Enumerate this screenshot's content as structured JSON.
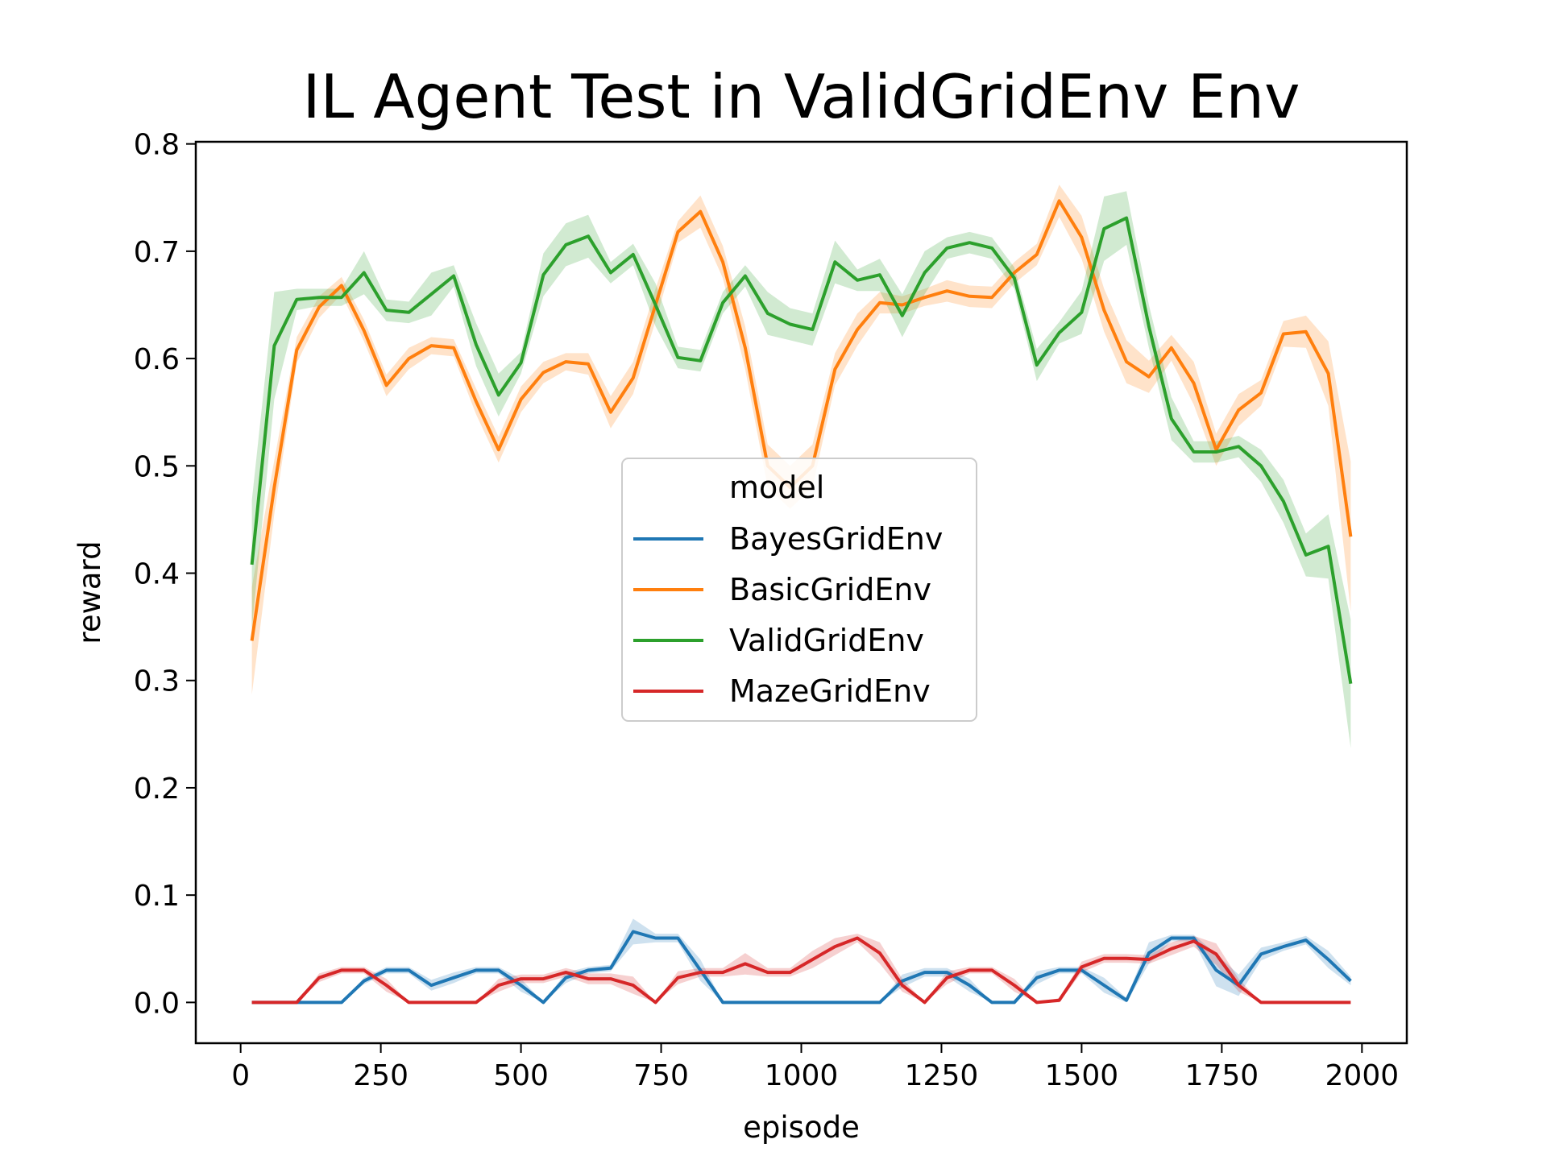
{
  "chart_data": {
    "type": "line",
    "title": "IL Agent Test in ValidGridEnv Env",
    "xlabel": "episode",
    "ylabel": "reward",
    "xlim": [
      -80,
      2080
    ],
    "ylim": [
      -0.038,
      0.802
    ],
    "xticks": [
      0,
      250,
      500,
      750,
      1000,
      1250,
      1500,
      1750,
      2000
    ],
    "yticks": [
      0.0,
      0.1,
      0.2,
      0.3,
      0.4,
      0.5,
      0.6,
      0.7,
      0.8
    ],
    "xtick_labels": [
      "0",
      "250",
      "500",
      "750",
      "1000",
      "1250",
      "1500",
      "1750",
      "2000"
    ],
    "ytick_labels": [
      "0.0",
      "0.1",
      "0.2",
      "0.3",
      "0.4",
      "0.5",
      "0.6",
      "0.7",
      "0.8"
    ],
    "legend": {
      "title": "model",
      "placement": "center",
      "entries": [
        "BayesGridEnv",
        "BasicGridEnv",
        "ValidGridEnv",
        "MazeGridEnv"
      ]
    },
    "grid": false,
    "confidence_bands": true,
    "x": [
      20,
      60,
      100,
      140,
      180,
      220,
      260,
      300,
      340,
      380,
      420,
      460,
      500,
      540,
      580,
      620,
      660,
      700,
      740,
      780,
      820,
      860,
      900,
      940,
      980,
      1020,
      1060,
      1100,
      1140,
      1180,
      1220,
      1260,
      1300,
      1340,
      1380,
      1420,
      1460,
      1500,
      1540,
      1580,
      1620,
      1660,
      1700,
      1740,
      1780,
      1820,
      1860,
      1900,
      1940,
      1980
    ],
    "series": [
      {
        "name": "BayesGridEnv",
        "color": "#1f77b4",
        "values": [
          0,
          0,
          0,
          0,
          0,
          0.02,
          0.03,
          0.03,
          0.016,
          0.023,
          0.03,
          0.03,
          0.016,
          0,
          0.023,
          0.03,
          0.032,
          0.066,
          0.06,
          0.06,
          0.03,
          0,
          0,
          0,
          0,
          0,
          0,
          0,
          0,
          0.02,
          0.028,
          0.028,
          0.016,
          0,
          0,
          0.023,
          0.03,
          0.03,
          0.016,
          0.002,
          0.046,
          0.06,
          0.06,
          0.03,
          0.016,
          0.045,
          0.052,
          0.058,
          0.04,
          0.02
        ],
        "band": [
          0,
          0,
          0,
          0,
          0,
          0.003,
          0.003,
          0.003,
          0.005,
          0.005,
          0.003,
          0.003,
          0.006,
          0,
          0.005,
          0.003,
          0.003,
          0.012,
          0.004,
          0.004,
          0.01,
          0,
          0,
          0,
          0,
          0,
          0,
          0,
          0,
          0.006,
          0.004,
          0.004,
          0.006,
          0,
          0,
          0.006,
          0.003,
          0.003,
          0.007,
          0.002,
          0.01,
          0.003,
          0.003,
          0.015,
          0.01,
          0.006,
          0.004,
          0.004,
          0.008,
          0.004
        ]
      },
      {
        "name": "BasicGridEnv",
        "color": "#ff7f0e",
        "values": [
          0.337,
          0.48,
          0.608,
          0.648,
          0.668,
          0.626,
          0.575,
          0.6,
          0.612,
          0.61,
          0.56,
          0.515,
          0.562,
          0.587,
          0.597,
          0.595,
          0.55,
          0.582,
          0.65,
          0.718,
          0.737,
          0.69,
          0.61,
          0.5,
          0.48,
          0.5,
          0.59,
          0.627,
          0.652,
          0.65,
          0.657,
          0.663,
          0.658,
          0.657,
          0.68,
          0.697,
          0.747,
          0.713,
          0.645,
          0.597,
          0.583,
          0.61,
          0.577,
          0.515,
          0.552,
          0.568,
          0.623,
          0.625,
          0.586,
          0.434
        ],
        "band": [
          0.05,
          0.025,
          0.012,
          0.01,
          0.008,
          0.01,
          0.01,
          0.01,
          0.008,
          0.008,
          0.012,
          0.012,
          0.012,
          0.01,
          0.008,
          0.01,
          0.015,
          0.015,
          0.015,
          0.01,
          0.015,
          0.015,
          0.02,
          0.02,
          0.02,
          0.02,
          0.015,
          0.015,
          0.01,
          0.008,
          0.008,
          0.01,
          0.01,
          0.01,
          0.01,
          0.01,
          0.015,
          0.02,
          0.02,
          0.02,
          0.015,
          0.012,
          0.02,
          0.015,
          0.015,
          0.012,
          0.012,
          0.015,
          0.03,
          0.07
        ]
      },
      {
        "name": "ValidGridEnv",
        "color": "#2ca02c",
        "values": [
          0.408,
          0.612,
          0.655,
          0.657,
          0.657,
          0.68,
          0.645,
          0.643,
          0.66,
          0.677,
          0.613,
          0.566,
          0.596,
          0.678,
          0.706,
          0.714,
          0.68,
          0.697,
          0.65,
          0.601,
          0.598,
          0.652,
          0.677,
          0.642,
          0.632,
          0.627,
          0.69,
          0.673,
          0.678,
          0.64,
          0.68,
          0.703,
          0.708,
          0.703,
          0.675,
          0.594,
          0.624,
          0.643,
          0.721,
          0.731,
          0.63,
          0.544,
          0.513,
          0.513,
          0.518,
          0.5,
          0.467,
          0.417,
          0.425,
          0.297
        ],
        "band": [
          0.06,
          0.05,
          0.01,
          0.008,
          0.008,
          0.02,
          0.01,
          0.01,
          0.02,
          0.01,
          0.02,
          0.02,
          0.01,
          0.02,
          0.02,
          0.02,
          0.01,
          0.01,
          0.02,
          0.01,
          0.01,
          0.01,
          0.01,
          0.02,
          0.015,
          0.015,
          0.02,
          0.01,
          0.015,
          0.02,
          0.02,
          0.01,
          0.01,
          0.01,
          0.01,
          0.015,
          0.01,
          0.02,
          0.03,
          0.025,
          0.02,
          0.02,
          0.01,
          0.01,
          0.01,
          0.015,
          0.02,
          0.02,
          0.03,
          0.06
        ]
      },
      {
        "name": "MazeGridEnv",
        "color": "#d62728",
        "values": [
          0,
          0,
          0,
          0.023,
          0.03,
          0.03,
          0.016,
          0,
          0,
          0,
          0,
          0.016,
          0.022,
          0.022,
          0.028,
          0.022,
          0.022,
          0.016,
          0,
          0.023,
          0.028,
          0.028,
          0.036,
          0.028,
          0.028,
          0.04,
          0.052,
          0.06,
          0.046,
          0.016,
          0,
          0.023,
          0.03,
          0.03,
          0.016,
          0,
          0.002,
          0.033,
          0.041,
          0.041,
          0.04,
          0.05,
          0.057,
          0.045,
          0.016,
          0,
          0,
          0,
          0,
          0
        ],
        "band": [
          0,
          0,
          0,
          0.004,
          0.003,
          0.003,
          0.006,
          0,
          0,
          0,
          0,
          0.006,
          0.004,
          0.004,
          0.004,
          0.005,
          0.005,
          0.008,
          0,
          0.006,
          0.004,
          0.004,
          0.01,
          0.004,
          0.004,
          0.008,
          0.008,
          0.004,
          0.01,
          0.006,
          0,
          0.006,
          0.003,
          0.003,
          0.006,
          0,
          0.002,
          0.005,
          0.004,
          0.004,
          0.004,
          0.006,
          0.005,
          0.01,
          0.006,
          0,
          0,
          0,
          0,
          0
        ]
      }
    ]
  }
}
